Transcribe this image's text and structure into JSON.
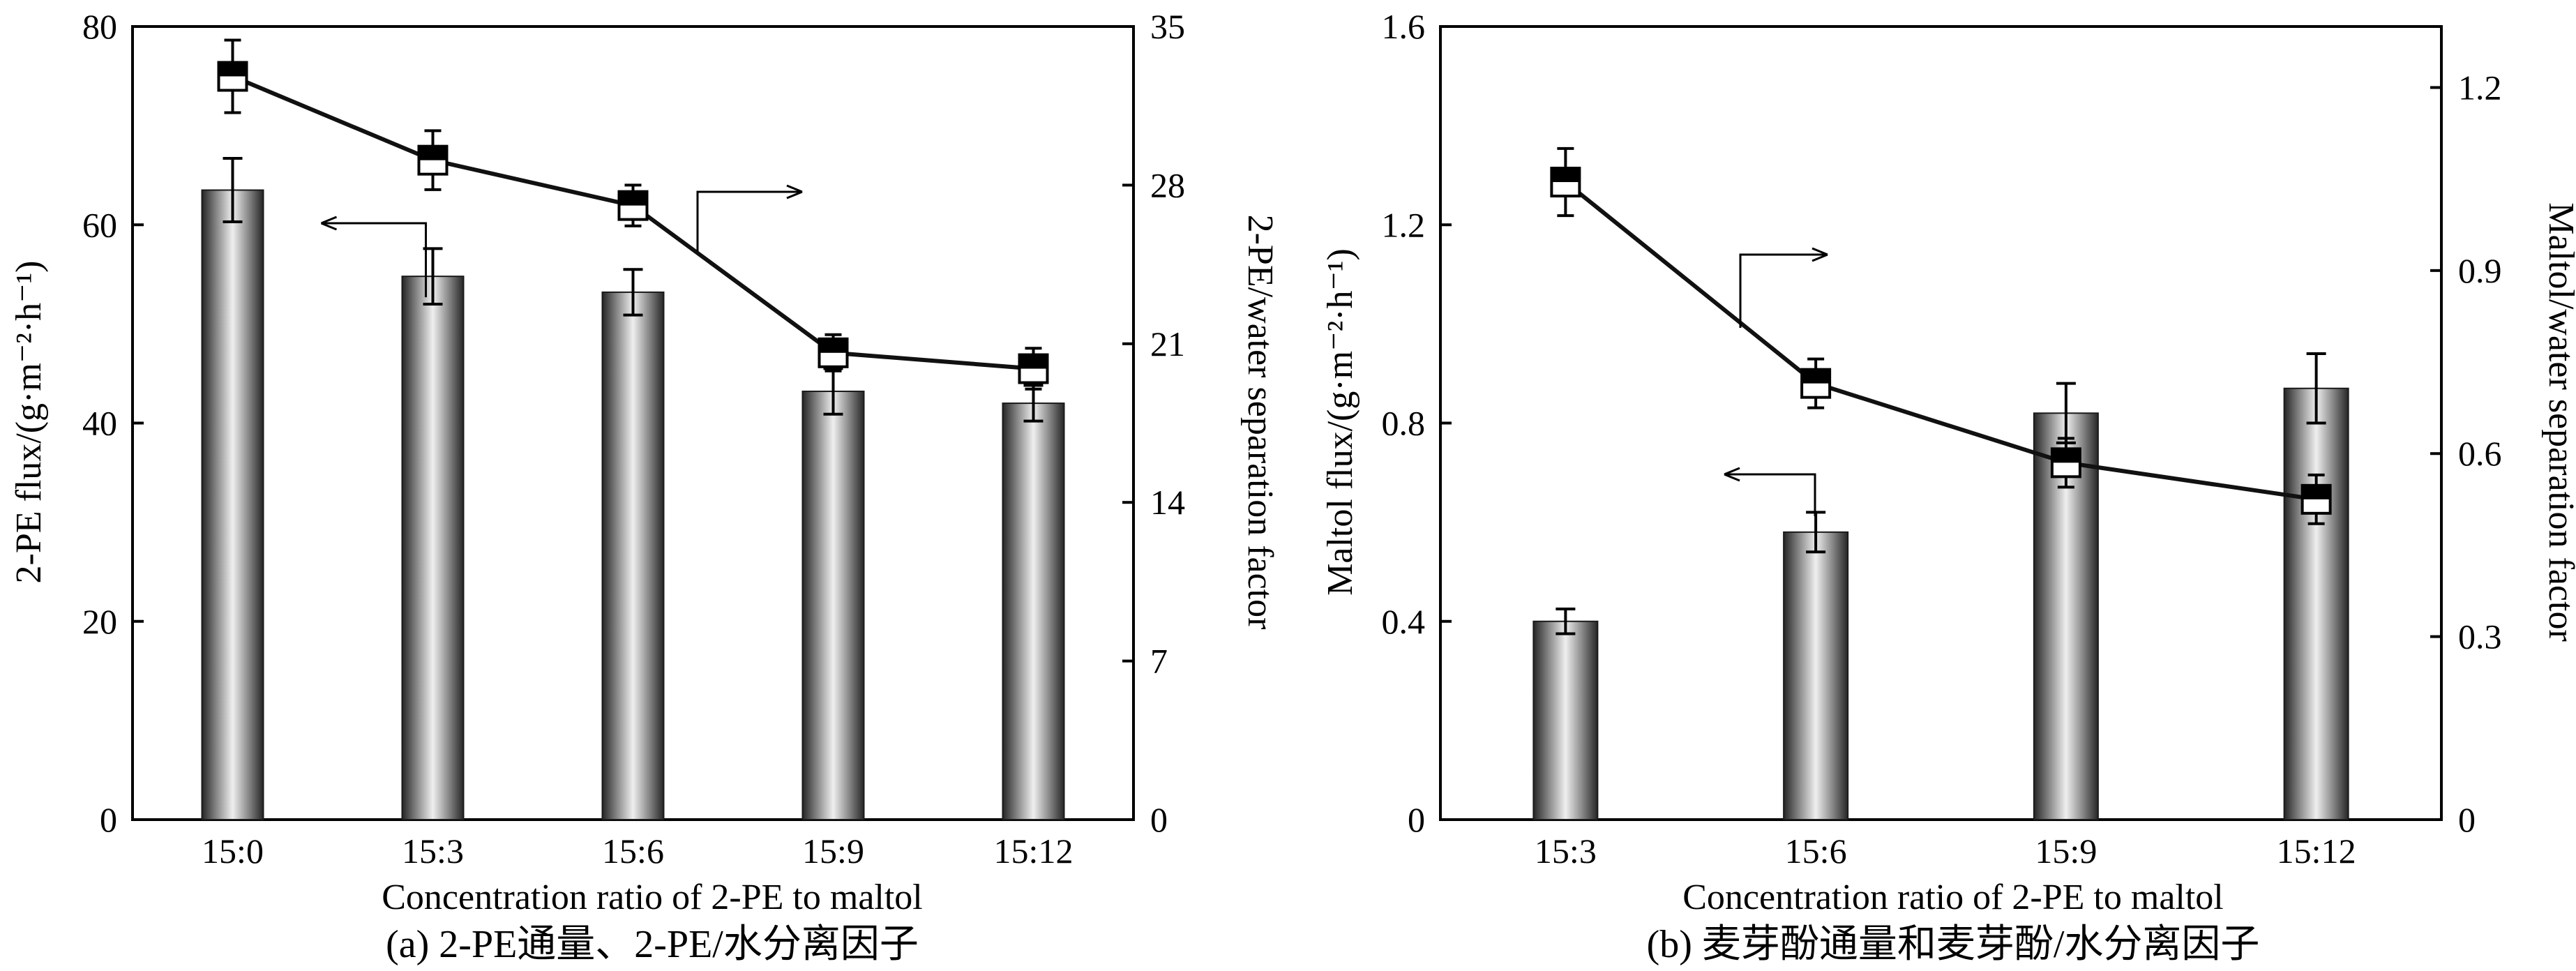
{
  "colors": {
    "axis": "#000000",
    "bar_dark": "#2e2e2e",
    "bar_light": "#ececec",
    "line": "#111111",
    "marker_fill": "#ffffff"
  },
  "chart_data": [
    {
      "type": "bar+line",
      "panel": "a",
      "caption": "(a) 2-PE通量、2-PE/水分离因子",
      "xlabel": "Concentration ratio of 2-PE to maltol",
      "ylabel_left": "2-PE flux/(g·m⁻²·h⁻¹)",
      "ylabel_right": "2-PE/water separation factor",
      "categories": [
        "15:0",
        "15:3",
        "15:6",
        "15:9",
        "15:12"
      ],
      "left_axis": {
        "ylim": [
          0,
          80
        ],
        "ticks": [
          0,
          20,
          40,
          60,
          80
        ]
      },
      "right_axis": {
        "ylim": [
          0,
          35
        ],
        "ticks": [
          0,
          7,
          14,
          21,
          28,
          35
        ]
      },
      "bars": {
        "name": "2-PE flux",
        "axis": "left",
        "values": [
          63.5,
          54.8,
          53.2,
          43.2,
          42.0
        ],
        "errors": [
          3.2,
          2.8,
          2.3,
          2.3,
          1.8
        ]
      },
      "line": {
        "name": "2-PE/water separation factor",
        "axis": "right",
        "values": [
          32.8,
          29.1,
          27.1,
          20.6,
          19.9
        ],
        "errors": [
          1.6,
          1.3,
          0.9,
          0.8,
          0.9
        ]
      },
      "annotations": [
        {
          "text": "←",
          "target": "left axis (bars)"
        },
        {
          "text": "→",
          "target": "right axis (line)"
        }
      ]
    },
    {
      "type": "bar+line",
      "panel": "b",
      "caption": "(b) 麦芽酚通量和麦芽酚/水分离因子",
      "xlabel": "Concentration ratio of 2-PE to maltol",
      "ylabel_left": "Maltol flux/(g·m⁻²·h⁻¹)",
      "ylabel_right": "Maltol/water separation factor",
      "categories": [
        "15:3",
        "15:6",
        "15:9",
        "15:12"
      ],
      "left_axis": {
        "ylim": [
          0,
          1.6
        ],
        "ticks": [
          "0",
          "0.4",
          "0.8",
          "1.2",
          "1.6"
        ]
      },
      "right_axis": {
        "ylim": [
          0,
          1.3
        ],
        "ticks": [
          "0",
          "0.3",
          "0.6",
          "0.9",
          "1.2"
        ]
      },
      "bars": {
        "name": "Maltol flux",
        "axis": "left",
        "values": [
          0.4,
          0.58,
          0.82,
          0.87
        ],
        "errors": [
          0.025,
          0.04,
          0.06,
          0.07
        ]
      },
      "line": {
        "name": "Maltol/water separation factor",
        "axis": "right",
        "values": [
          1.045,
          0.715,
          0.585,
          0.525
        ],
        "errors": [
          0.055,
          0.04,
          0.04,
          0.04
        ]
      },
      "annotations": [
        {
          "text": "←",
          "target": "left axis (bars)"
        },
        {
          "text": "→",
          "target": "right axis (line)"
        }
      ]
    }
  ]
}
